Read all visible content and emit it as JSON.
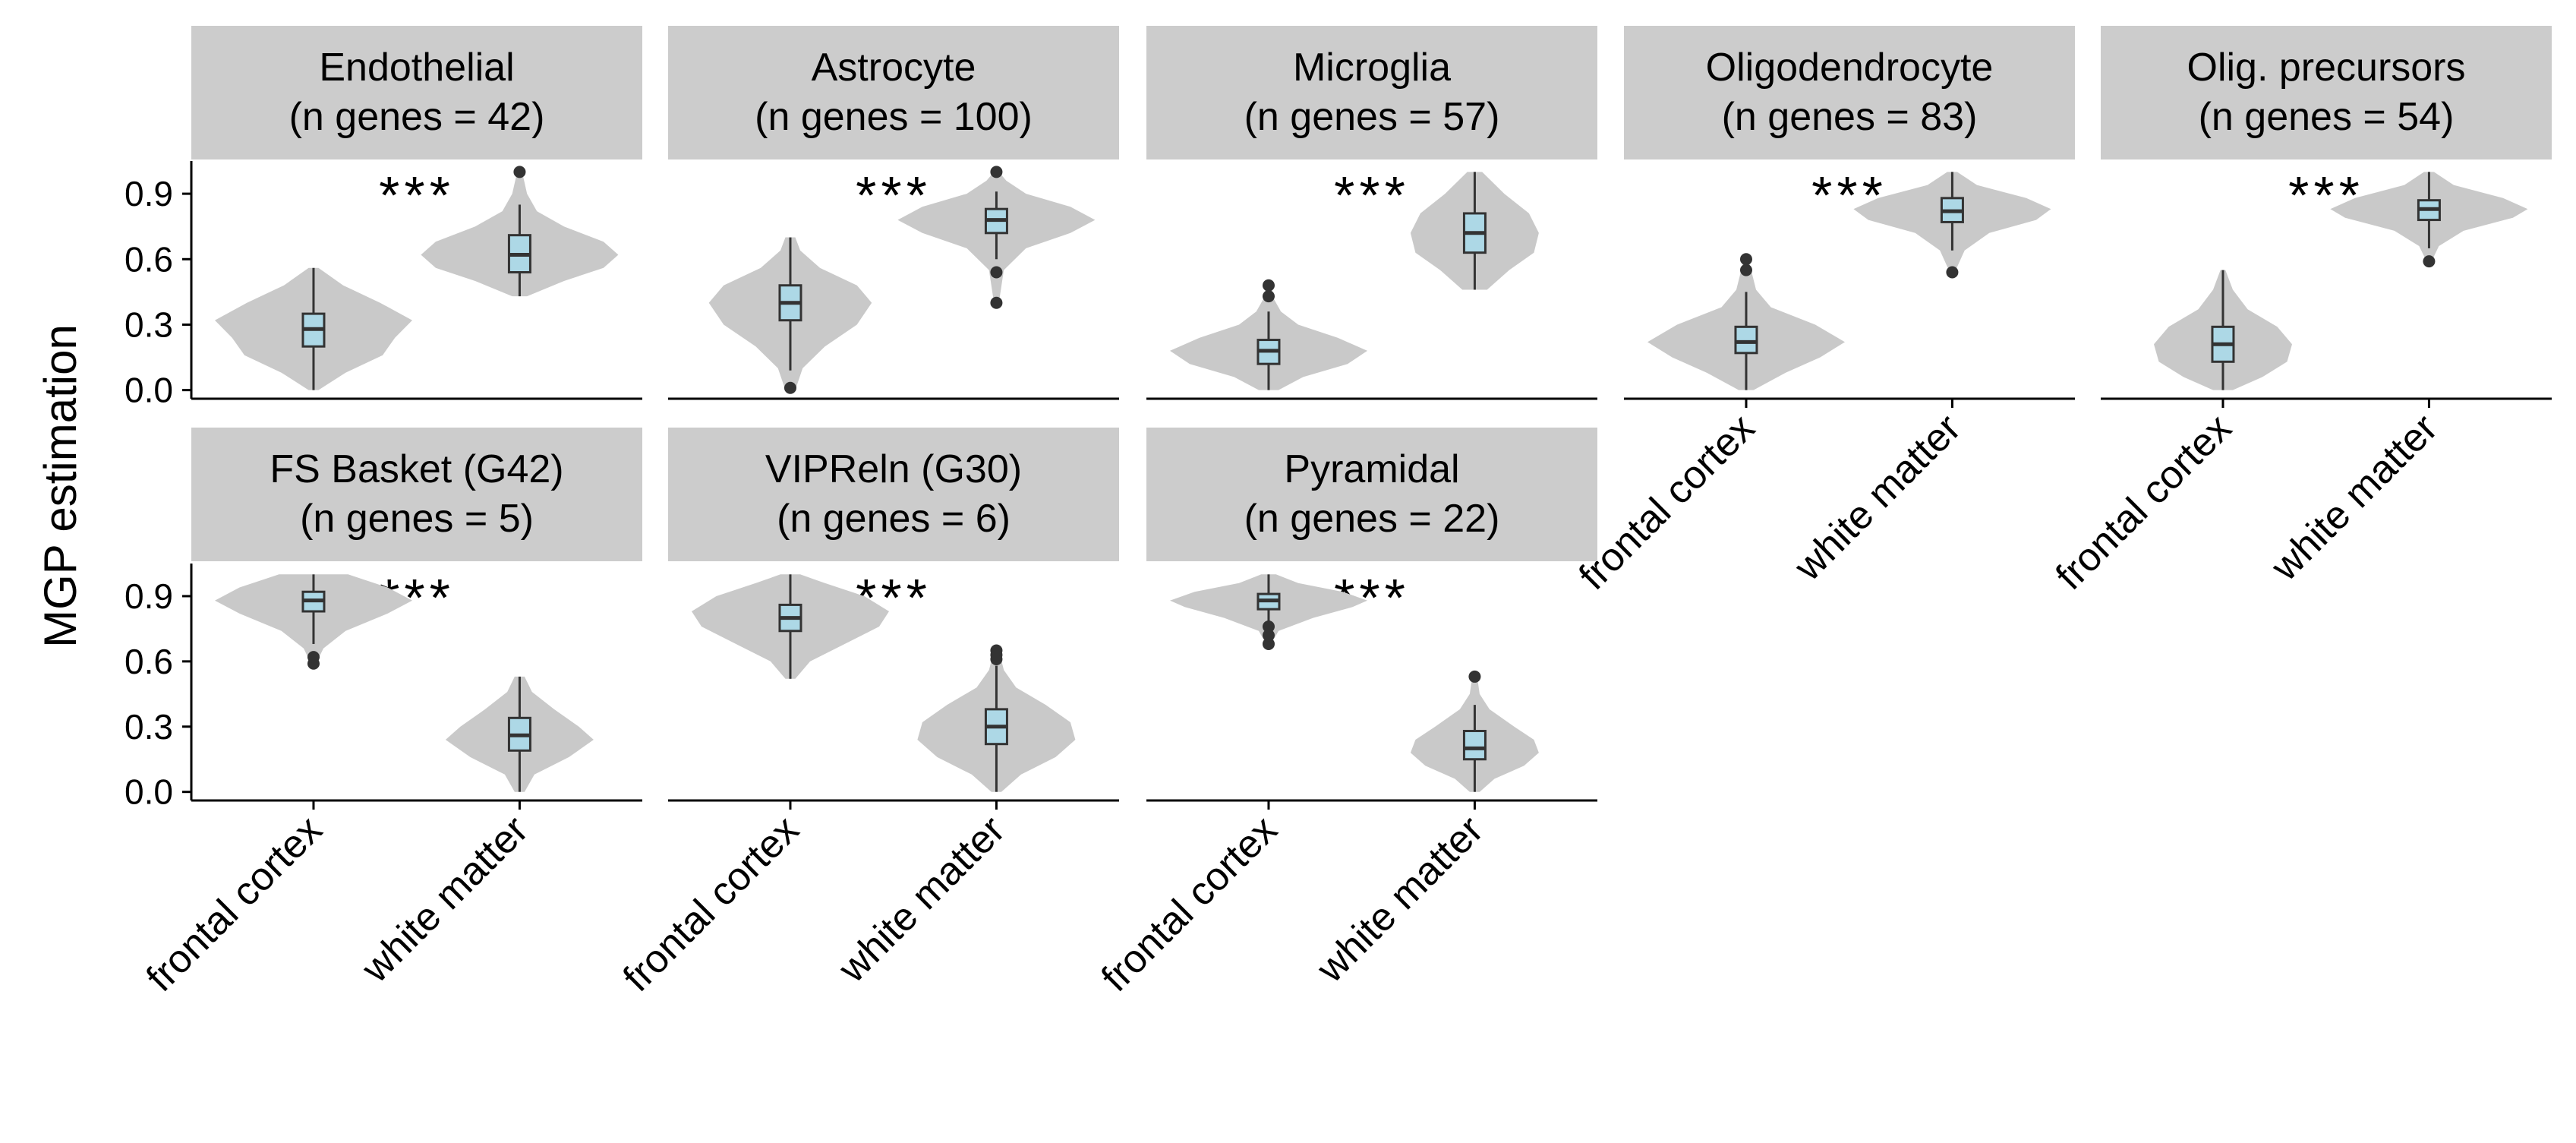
{
  "chart_data": {
    "type": "violin",
    "ylabel": "MGP estimation",
    "xlabel": "",
    "ylim": [
      -0.05,
      1.05
    ],
    "yticks": [
      0.0,
      0.3,
      0.6,
      0.9
    ],
    "ytick_labels": [
      "0.0",
      "0.3",
      "0.6",
      "0.9"
    ],
    "categories": [
      "frontal cortex",
      "white matter"
    ],
    "colors": {
      "violin": "#c9c9c9",
      "box": "#add8e6",
      "strip": "#cccccc",
      "line": "#333333",
      "axis": "#000000"
    },
    "panels": [
      {
        "name": "Endothelial",
        "n_label": "(n genes = 42)",
        "significance": "***",
        "groups": [
          {
            "category": "frontal cortex",
            "min": 0.0,
            "q1": 0.2,
            "median": 0.28,
            "q3": 0.35,
            "max": 0.56,
            "outliers": [],
            "density": [
              [
                0.0,
                0.02
              ],
              [
                0.08,
                0.13
              ],
              [
                0.16,
                0.28
              ],
              [
                0.24,
                0.33
              ],
              [
                0.32,
                0.4
              ],
              [
                0.4,
                0.27
              ],
              [
                0.48,
                0.12
              ],
              [
                0.56,
                0.02
              ]
            ]
          },
          {
            "category": "white matter",
            "min": 0.43,
            "q1": 0.54,
            "median": 0.62,
            "q3": 0.71,
            "max": 0.85,
            "outliers": [
              1.0
            ],
            "density": [
              [
                0.43,
                0.03
              ],
              [
                0.5,
                0.18
              ],
              [
                0.56,
                0.34
              ],
              [
                0.62,
                0.4
              ],
              [
                0.68,
                0.34
              ],
              [
                0.75,
                0.18
              ],
              [
                0.82,
                0.07
              ],
              [
                0.9,
                0.03
              ],
              [
                1.0,
                0.01
              ]
            ]
          }
        ]
      },
      {
        "name": "Astrocyte",
        "n_label": "(n genes = 100)",
        "significance": "***",
        "groups": [
          {
            "category": "frontal cortex",
            "min": 0.09,
            "q1": 0.32,
            "median": 0.4,
            "q3": 0.48,
            "max": 0.7,
            "outliers": [
              0.01
            ],
            "density": [
              [
                0.0,
                0.02
              ],
              [
                0.1,
                0.05
              ],
              [
                0.2,
                0.14
              ],
              [
                0.3,
                0.27
              ],
              [
                0.4,
                0.33
              ],
              [
                0.48,
                0.27
              ],
              [
                0.56,
                0.12
              ],
              [
                0.64,
                0.04
              ],
              [
                0.7,
                0.02
              ]
            ]
          },
          {
            "category": "white matter",
            "min": 0.6,
            "q1": 0.72,
            "median": 0.78,
            "q3": 0.83,
            "max": 0.91,
            "outliers": [
              0.4,
              0.54,
              1.0
            ],
            "density": [
              [
                0.4,
                0.01
              ],
              [
                0.55,
                0.03
              ],
              [
                0.65,
                0.12
              ],
              [
                0.72,
                0.3
              ],
              [
                0.78,
                0.4
              ],
              [
                0.84,
                0.3
              ],
              [
                0.9,
                0.12
              ],
              [
                0.96,
                0.04
              ],
              [
                1.0,
                0.01
              ]
            ]
          }
        ]
      },
      {
        "name": "Microglia",
        "n_label": "(n genes = 57)",
        "significance": "***",
        "groups": [
          {
            "category": "frontal cortex",
            "min": 0.0,
            "q1": 0.12,
            "median": 0.18,
            "q3": 0.23,
            "max": 0.36,
            "outliers": [
              0.43,
              0.48
            ],
            "density": [
              [
                0.0,
                0.04
              ],
              [
                0.06,
                0.14
              ],
              [
                0.12,
                0.32
              ],
              [
                0.18,
                0.4
              ],
              [
                0.24,
                0.28
              ],
              [
                0.3,
                0.12
              ],
              [
                0.36,
                0.05
              ],
              [
                0.42,
                0.02
              ],
              [
                0.48,
                0.01
              ]
            ]
          },
          {
            "category": "white matter",
            "min": 0.46,
            "q1": 0.63,
            "median": 0.72,
            "q3": 0.81,
            "max": 1.0,
            "outliers": [],
            "density": [
              [
                0.46,
                0.05
              ],
              [
                0.55,
                0.14
              ],
              [
                0.63,
                0.24
              ],
              [
                0.72,
                0.26
              ],
              [
                0.81,
                0.22
              ],
              [
                0.9,
                0.12
              ],
              [
                1.0,
                0.03
              ]
            ]
          }
        ]
      },
      {
        "name": "Oligodendrocyte",
        "n_label": "(n genes = 83)",
        "significance": "***",
        "groups": [
          {
            "category": "frontal cortex",
            "min": 0.0,
            "q1": 0.17,
            "median": 0.22,
            "q3": 0.29,
            "max": 0.45,
            "outliers": [
              0.55,
              0.6
            ],
            "density": [
              [
                0.0,
                0.03
              ],
              [
                0.08,
                0.16
              ],
              [
                0.15,
                0.3
              ],
              [
                0.22,
                0.4
              ],
              [
                0.3,
                0.28
              ],
              [
                0.38,
                0.1
              ],
              [
                0.46,
                0.04
              ],
              [
                0.55,
                0.02
              ],
              [
                0.6,
                0.01
              ]
            ]
          },
          {
            "category": "white matter",
            "min": 0.64,
            "q1": 0.77,
            "median": 0.82,
            "q3": 0.88,
            "max": 1.0,
            "outliers": [
              0.54
            ],
            "density": [
              [
                0.54,
                0.01
              ],
              [
                0.64,
                0.05
              ],
              [
                0.72,
                0.15
              ],
              [
                0.78,
                0.34
              ],
              [
                0.83,
                0.4
              ],
              [
                0.88,
                0.3
              ],
              [
                0.94,
                0.1
              ],
              [
                1.0,
                0.02
              ]
            ]
          }
        ]
      },
      {
        "name": "Olig. precursors",
        "n_label": "(n genes = 54)",
        "significance": "***",
        "groups": [
          {
            "category": "frontal cortex",
            "min": 0.0,
            "q1": 0.13,
            "median": 0.21,
            "q3": 0.29,
            "max": 0.55,
            "outliers": [],
            "density": [
              [
                0.0,
                0.04
              ],
              [
                0.06,
                0.16
              ],
              [
                0.13,
                0.26
              ],
              [
                0.21,
                0.28
              ],
              [
                0.29,
                0.22
              ],
              [
                0.37,
                0.1
              ],
              [
                0.46,
                0.04
              ],
              [
                0.55,
                0.01
              ]
            ]
          },
          {
            "category": "white matter",
            "min": 0.65,
            "q1": 0.78,
            "median": 0.83,
            "q3": 0.87,
            "max": 1.0,
            "outliers": [
              0.59
            ],
            "density": [
              [
                0.59,
                0.01
              ],
              [
                0.66,
                0.04
              ],
              [
                0.73,
                0.14
              ],
              [
                0.79,
                0.34
              ],
              [
                0.83,
                0.4
              ],
              [
                0.88,
                0.3
              ],
              [
                0.94,
                0.1
              ],
              [
                1.0,
                0.02
              ]
            ]
          }
        ]
      },
      {
        "name": "FS Basket (G42)",
        "n_label": "(n genes = 5)",
        "significance": "***",
        "groups": [
          {
            "category": "frontal cortex",
            "min": 0.68,
            "q1": 0.83,
            "median": 0.88,
            "q3": 0.92,
            "max": 1.0,
            "outliers": [
              0.59,
              0.62
            ],
            "density": [
              [
                0.59,
                0.01
              ],
              [
                0.66,
                0.04
              ],
              [
                0.74,
                0.13
              ],
              [
                0.82,
                0.3
              ],
              [
                0.88,
                0.4
              ],
              [
                0.94,
                0.3
              ],
              [
                1.0,
                0.14
              ]
            ]
          },
          {
            "category": "white matter",
            "min": 0.0,
            "q1": 0.19,
            "median": 0.26,
            "q3": 0.34,
            "max": 0.53,
            "outliers": [],
            "density": [
              [
                0.0,
                0.02
              ],
              [
                0.08,
                0.06
              ],
              [
                0.16,
                0.2
              ],
              [
                0.24,
                0.3
              ],
              [
                0.3,
                0.24
              ],
              [
                0.38,
                0.14
              ],
              [
                0.46,
                0.05
              ],
              [
                0.53,
                0.02
              ]
            ]
          }
        ]
      },
      {
        "name": "VIPReln (G30)",
        "n_label": "(n genes = 6)",
        "significance": "***",
        "groups": [
          {
            "category": "frontal cortex",
            "min": 0.52,
            "q1": 0.74,
            "median": 0.8,
            "q3": 0.86,
            "max": 1.0,
            "outliers": [],
            "density": [
              [
                0.52,
                0.02
              ],
              [
                0.6,
                0.08
              ],
              [
                0.68,
                0.22
              ],
              [
                0.76,
                0.36
              ],
              [
                0.83,
                0.4
              ],
              [
                0.9,
                0.3
              ],
              [
                0.96,
                0.14
              ],
              [
                1.0,
                0.04
              ]
            ]
          },
          {
            "category": "white matter",
            "min": 0.0,
            "q1": 0.22,
            "median": 0.3,
            "q3": 0.38,
            "max": 0.58,
            "outliers": [
              0.61,
              0.63,
              0.65
            ],
            "density": [
              [
                0.0,
                0.02
              ],
              [
                0.08,
                0.1
              ],
              [
                0.16,
                0.24
              ],
              [
                0.24,
                0.32
              ],
              [
                0.32,
                0.3
              ],
              [
                0.4,
                0.2
              ],
              [
                0.48,
                0.08
              ],
              [
                0.56,
                0.03
              ],
              [
                0.65,
                0.01
              ]
            ]
          }
        ]
      },
      {
        "name": "Pyramidal",
        "n_label": "(n genes = 22)",
        "significance": "***",
        "groups": [
          {
            "category": "frontal cortex",
            "min": 0.78,
            "q1": 0.84,
            "median": 0.88,
            "q3": 0.91,
            "max": 1.0,
            "outliers": [
              0.68,
              0.72,
              0.76
            ],
            "density": [
              [
                0.68,
                0.01
              ],
              [
                0.74,
                0.04
              ],
              [
                0.8,
                0.18
              ],
              [
                0.85,
                0.34
              ],
              [
                0.88,
                0.4
              ],
              [
                0.92,
                0.3
              ],
              [
                0.96,
                0.12
              ],
              [
                1.0,
                0.03
              ]
            ]
          },
          {
            "category": "white matter",
            "min": 0.0,
            "q1": 0.15,
            "median": 0.2,
            "q3": 0.28,
            "max": 0.4,
            "outliers": [
              0.53
            ],
            "density": [
              [
                0.0,
                0.02
              ],
              [
                0.06,
                0.08
              ],
              [
                0.12,
                0.2
              ],
              [
                0.18,
                0.26
              ],
              [
                0.24,
                0.24
              ],
              [
                0.3,
                0.16
              ],
              [
                0.38,
                0.06
              ],
              [
                0.45,
                0.02
              ],
              [
                0.53,
                0.01
              ]
            ]
          }
        ]
      }
    ]
  }
}
